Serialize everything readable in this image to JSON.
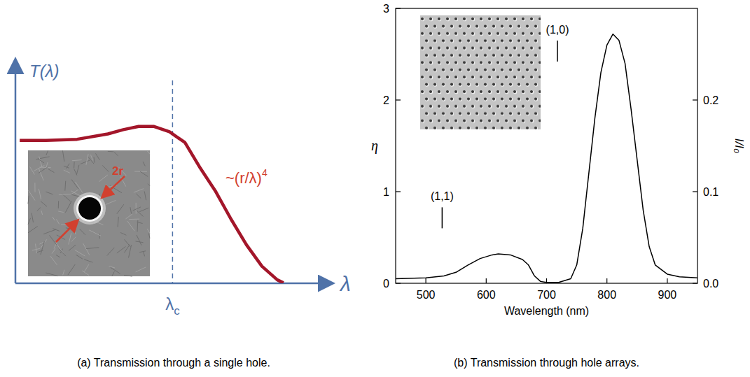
{
  "chart_data": [
    {
      "type": "line",
      "title": "(a) Transmission through a single hole.",
      "y_label": "T(λ)",
      "x_label": "λ",
      "tick_labels": false,
      "xlim": [
        0,
        10
      ],
      "ylim": [
        0,
        10
      ],
      "x": [
        0.14,
        1,
        2,
        3,
        3.5,
        4,
        4.5,
        5,
        5.5,
        6,
        6.5,
        7,
        7.5,
        8,
        8.5,
        8.7
      ],
      "series": [
        {
          "color": "#a3162a",
          "values": [
            6.7,
            6.7,
            6.75,
            7.0,
            7.2,
            7.35,
            7.35,
            7.1,
            6.6,
            5.4,
            4.3,
            3.0,
            1.8,
            0.8,
            0.16,
            0.02
          ]
        }
      ],
      "annotations": [
        {
          "text": "λ",
          "subscript": "c",
          "x": 5.1,
          "line_style": "dashed"
        },
        {
          "text": "~(r/λ)",
          "superscript": "4"
        },
        {
          "text": "2r"
        }
      ]
    },
    {
      "type": "line",
      "title": "(b) Transmission through hole arrays.",
      "x_label": "Wavelength (nm)",
      "y_label": "η",
      "y2_label": "I/I₀",
      "xlim": [
        450,
        950
      ],
      "xticks": [
        500,
        600,
        700,
        800,
        900
      ],
      "ylim": [
        0,
        3
      ],
      "yticks": [
        0,
        1,
        2,
        3
      ],
      "y2lim": [
        0,
        0.3
      ],
      "y2ticks": [
        {
          "value": 0,
          "label": "0.0"
        },
        {
          "value": 0.1,
          "label": "0.1"
        },
        {
          "value": 0.2,
          "label": "0.2"
        }
      ],
      "x": [
        450,
        500,
        530,
        550,
        570,
        590,
        610,
        620,
        640,
        660,
        670,
        680,
        690,
        700,
        720,
        740,
        750,
        760,
        770,
        780,
        790,
        800,
        810,
        820,
        830,
        840,
        850,
        860,
        870,
        880,
        900,
        920,
        950
      ],
      "series": [
        {
          "color": "#000000",
          "values": [
            0.05,
            0.06,
            0.08,
            0.12,
            0.2,
            0.27,
            0.31,
            0.32,
            0.31,
            0.26,
            0.2,
            0.08,
            0.02,
            0.01,
            0.01,
            0.05,
            0.2,
            0.6,
            1.2,
            1.8,
            2.3,
            2.6,
            2.72,
            2.65,
            2.4,
            1.9,
            1.35,
            0.8,
            0.4,
            0.2,
            0.1,
            0.07,
            0.06
          ]
        }
      ],
      "annotations": [
        {
          "text": "(1,0)",
          "x": 718,
          "y": 2.42
        },
        {
          "text": "(1,1)",
          "x": 527,
          "y": 0.6
        }
      ]
    }
  ]
}
